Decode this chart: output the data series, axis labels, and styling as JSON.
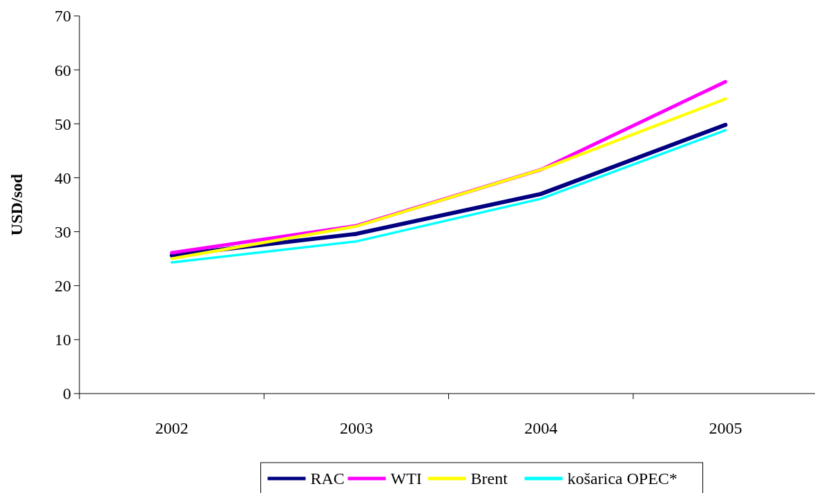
{
  "chart_data": {
    "type": "line",
    "ylabel": "USD/sod",
    "categories": [
      "2002",
      "2003",
      "2004",
      "2005"
    ],
    "series": [
      {
        "name": "RAC",
        "color": "#000080",
        "values": [
          25.6,
          29.6,
          37.0,
          49.8
        ]
      },
      {
        "name": "WTI",
        "color": "#ff00ff",
        "values": [
          26.1,
          31.1,
          41.5,
          57.8
        ]
      },
      {
        "name": "Brent",
        "color": "#ffff00",
        "values": [
          25.0,
          31.0,
          41.5,
          54.6
        ]
      },
      {
        "name": "košarica OPEC*",
        "color": "#00ffff",
        "values": [
          24.3,
          28.2,
          36.1,
          48.8
        ]
      }
    ],
    "ylim": [
      0,
      70
    ],
    "yticks": [
      0,
      10,
      20,
      30,
      40,
      50,
      60,
      70
    ],
    "grid": false,
    "legend": "bottom",
    "marker": "none",
    "line_style": "solid"
  }
}
